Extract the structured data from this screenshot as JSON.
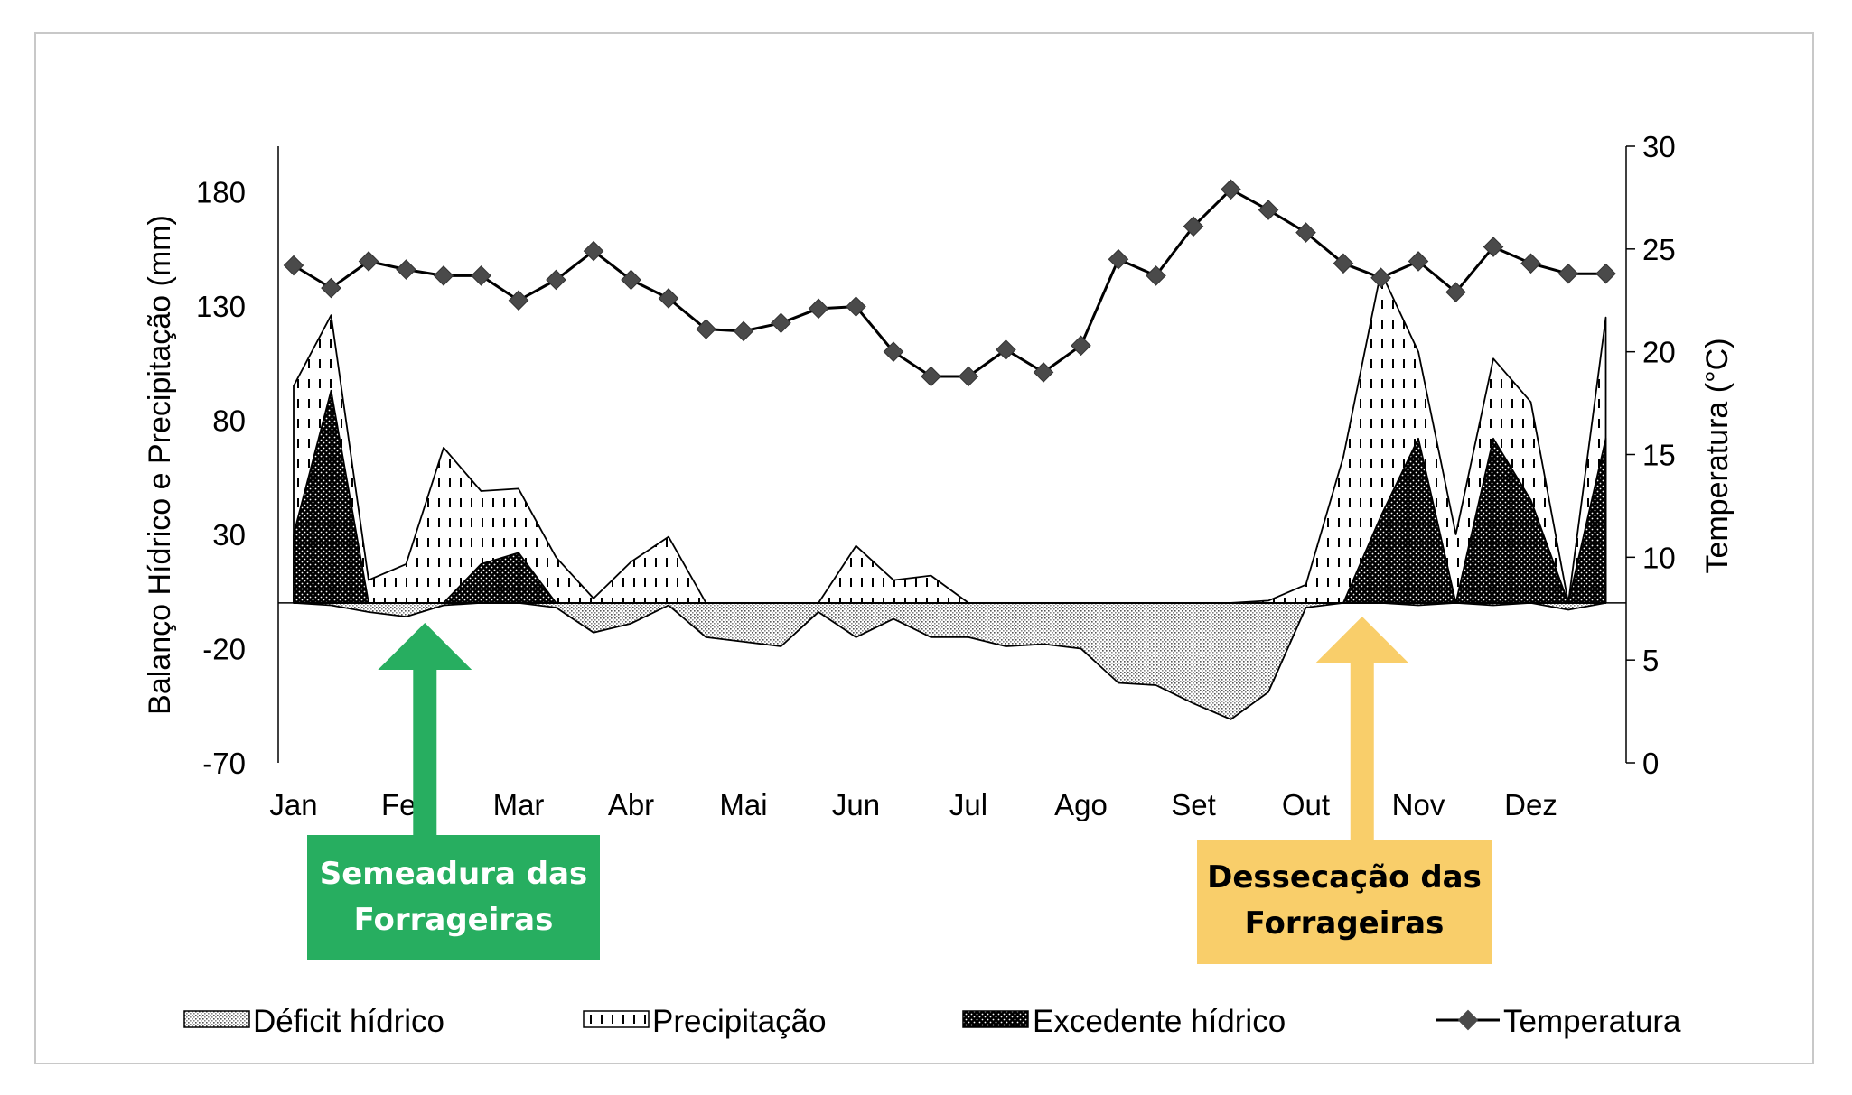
{
  "chart_data": {
    "type": "area",
    "xlabel": "",
    "categories": [
      "Jan",
      "Fev",
      "Mar",
      "Abr",
      "Mai",
      "Jun",
      "Jul",
      "Ago",
      "Set",
      "Out",
      "Nov",
      "Dez"
    ],
    "ylabel_left": "Balanço Hídrico e Precipitação (mm)",
    "ylabel_right": "Temperatura (°C)",
    "ylim_left": [
      -70,
      200
    ],
    "yticks_left": [
      "180",
      "130",
      "80",
      "30",
      "-20",
      "-70"
    ],
    "ylim_right": [
      0,
      30
    ],
    "yticks_right": [
      "30",
      "25",
      "20",
      "15",
      "10",
      "5",
      "0"
    ],
    "x": [
      0,
      0.333,
      0.667,
      1,
      1.333,
      1.667,
      2,
      2.333,
      2.667,
      3,
      3.333,
      3.667,
      4,
      4.333,
      4.667,
      5,
      5.333,
      5.667,
      6,
      6.333,
      6.667,
      7,
      7.333,
      7.667,
      8,
      8.333,
      8.667,
      9,
      9.333,
      9.667,
      10,
      10.333,
      10.667,
      11,
      11.333,
      11.667
    ],
    "series": [
      {
        "name": "Déficit hídrico",
        "style": "stipple",
        "values": [
          0,
          -1,
          -4,
          -6,
          -1,
          0,
          0,
          -2,
          -13,
          -9,
          -1,
          -15,
          -17,
          -19,
          -4,
          -15,
          -7,
          -15,
          -15,
          -19,
          -18,
          -20,
          -35,
          -36,
          -44,
          -51,
          -39,
          -2,
          0,
          0,
          -1,
          0,
          -1,
          0,
          -3,
          0
        ]
      },
      {
        "name": "Precipitação",
        "style": "dashed-hatch",
        "values": [
          95,
          126,
          10,
          17,
          68,
          49,
          50,
          20,
          2,
          18,
          29,
          0,
          0,
          0,
          0,
          25,
          10,
          12,
          0,
          0,
          0,
          0,
          0,
          0,
          0,
          0,
          1,
          8,
          64,
          145,
          110,
          30,
          107,
          88,
          0,
          125
        ]
      },
      {
        "name": "Excedente hídrico",
        "style": "dark-dots",
        "values": [
          30,
          93,
          0,
          0,
          0,
          17,
          22,
          0,
          0,
          0,
          0,
          0,
          0,
          0,
          0,
          0,
          0,
          0,
          0,
          0,
          0,
          0,
          0,
          0,
          0,
          0,
          0,
          0,
          0,
          38,
          72,
          0,
          72,
          45,
          0,
          72
        ]
      },
      {
        "name": "Temperatura",
        "axis": "right",
        "style": "line-diamond",
        "values": [
          24.2,
          23.1,
          24.4,
          24.0,
          23.7,
          23.7,
          22.5,
          23.5,
          24.9,
          23.5,
          22.6,
          21.1,
          21.0,
          21.4,
          22.1,
          22.2,
          20.0,
          18.8,
          18.8,
          20.1,
          19.0,
          20.3,
          24.5,
          23.7,
          26.1,
          27.9,
          26.9,
          25.8,
          24.3,
          23.6,
          24.4,
          22.9,
          25.1,
          24.3,
          23.8,
          23.8
        ]
      }
    ],
    "grid": false,
    "legend": "bottom"
  },
  "annotations": [
    {
      "id": "semeadura",
      "text_line1": "Semeadura das",
      "text_line2": "Forrageiras",
      "color": "#27AE60",
      "text_color": "#ffffff",
      "x_month": 1.167
    },
    {
      "id": "dessecacao",
      "text_line1": "Dessecação das",
      "text_line2": "Forrageiras",
      "color": "#F9CE6A",
      "text_color": "#000000",
      "x_month": 9.5
    }
  ],
  "colors": {
    "frame": "#c8c8c8",
    "axis": "#000000",
    "marker": "#4a4a4a",
    "excess": "#000000"
  }
}
